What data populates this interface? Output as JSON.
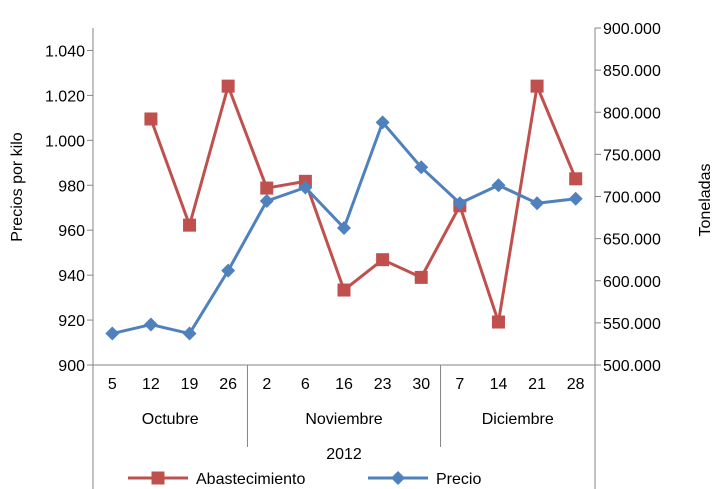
{
  "chart_data": {
    "type": "line",
    "categories": [
      "5",
      "12",
      "19",
      "26",
      "2",
      "6",
      "16",
      "23",
      "30",
      "7",
      "14",
      "21",
      "28"
    ],
    "groups": [
      {
        "label": "Octubre",
        "count": 4
      },
      {
        "label": "Noviembre",
        "count": 5
      },
      {
        "label": "Diciembre",
        "count": 4
      }
    ],
    "year_label": "2012",
    "ylabel_left": "Precios por kilo",
    "ylabel_right": "Toneladas",
    "ylim_left": [
      900,
      1050
    ],
    "ylim_right": [
      500000,
      900000
    ],
    "yticks_left": [
      "900",
      "920",
      "940",
      "960",
      "980",
      "1.000",
      "1.020",
      "1.040"
    ],
    "yticks_right": [
      "500.000",
      "550.000",
      "600.000",
      "650.000",
      "700.000",
      "750.000",
      "800.000",
      "850.000",
      "900.000"
    ],
    "grid": false,
    "legend_position": "bottom",
    "series": [
      {
        "name": "Abastecimiento",
        "axis": "right",
        "color": "#c0504d",
        "marker": "square",
        "values": [
          null,
          792000,
          666000,
          831000,
          710000,
          718000,
          589000,
          625000,
          604000,
          689000,
          551000,
          831000,
          721000
        ]
      },
      {
        "name": "Precio",
        "axis": "left",
        "color": "#4f81bd",
        "marker": "diamond",
        "values": [
          914,
          918,
          914,
          942,
          973,
          979,
          961,
          1008,
          988,
          972,
          980,
          972,
          974
        ]
      }
    ]
  }
}
